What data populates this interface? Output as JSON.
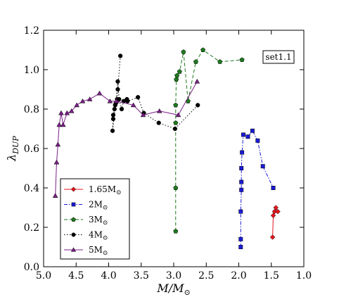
{
  "chart_data": {
    "type": "line",
    "xlabel": "M/M",
    "xlabel_sub": "⊙",
    "ylabel": "λ",
    "ylabel_sub": "DUP",
    "xlim": [
      5.0,
      1.0
    ],
    "ylim": [
      0.0,
      1.2
    ],
    "x_ticks": [
      5.0,
      4.5,
      4.0,
      3.5,
      3.0,
      2.5,
      2.0,
      1.5,
      1.0
    ],
    "x_tick_labels": [
      "5.0",
      "4.5",
      "4.0",
      "3.5",
      "3.0",
      "2.5",
      "2.0",
      "1.5",
      "1.0"
    ],
    "y_ticks": [
      0.0,
      0.2,
      0.4,
      0.6,
      0.8,
      1.0,
      1.2
    ],
    "y_tick_labels": [
      "0.0",
      "0.2",
      "0.4",
      "0.6",
      "0.8",
      "1.0",
      "1.2"
    ],
    "grid": false,
    "legend_position": "bottom-left",
    "annotation": "set1.1",
    "series": [
      {
        "name": "1.65M",
        "name_sub": "⊙",
        "color": "#e8141c",
        "marker": "diamond",
        "linestyle": "solid",
        "points": [
          [
            1.48,
            0.15
          ],
          [
            1.47,
            0.26
          ],
          [
            1.45,
            0.28
          ],
          [
            1.43,
            0.3
          ],
          [
            1.4,
            0.28
          ]
        ]
      },
      {
        "name": "2M",
        "name_sub": "⊙",
        "color": "#1a1ad8",
        "marker": "square",
        "linestyle": "dashdot",
        "points": [
          [
            1.97,
            0.1
          ],
          [
            1.97,
            0.14
          ],
          [
            1.97,
            0.28
          ],
          [
            1.96,
            0.39
          ],
          [
            1.96,
            0.43
          ],
          [
            1.96,
            0.5
          ],
          [
            1.95,
            0.58
          ],
          [
            1.93,
            0.67
          ],
          [
            1.86,
            0.66
          ],
          [
            1.79,
            0.69
          ],
          [
            1.71,
            0.64
          ],
          [
            1.63,
            0.51
          ],
          [
            1.47,
            0.4
          ]
        ]
      },
      {
        "name": "3M",
        "name_sub": "⊙",
        "color": "#1e7a1e",
        "marker": "pentagon",
        "linestyle": "dashed",
        "points": [
          [
            2.97,
            0.18
          ],
          [
            2.97,
            0.4
          ],
          [
            2.97,
            0.73
          ],
          [
            2.97,
            0.82
          ],
          [
            2.96,
            0.95
          ],
          [
            2.95,
            0.97
          ],
          [
            2.91,
            0.99
          ],
          [
            2.85,
            1.09
          ],
          [
            2.78,
            0.84
          ],
          [
            2.66,
            1.04
          ],
          [
            2.55,
            1.1
          ],
          [
            2.29,
            1.04
          ],
          [
            1.95,
            1.05
          ]
        ]
      },
      {
        "name": "4M",
        "name_sub": "⊙",
        "color": "#000000",
        "marker": "circle",
        "linestyle": "dotted",
        "points": [
          [
            3.82,
            1.07
          ],
          [
            3.86,
            0.9
          ],
          [
            3.87,
            0.85
          ],
          [
            3.9,
            0.82
          ],
          [
            3.91,
            0.8
          ],
          [
            3.93,
            0.77
          ],
          [
            3.93,
            0.75
          ],
          [
            3.94,
            0.69
          ],
          [
            3.89,
            0.83
          ],
          [
            3.86,
            0.94
          ],
          [
            3.84,
            0.85
          ],
          [
            3.8,
            0.8
          ],
          [
            3.77,
            0.84
          ],
          [
            3.72,
            0.85
          ],
          [
            3.71,
            0.84
          ],
          [
            3.55,
            0.86
          ],
          [
            3.46,
            0.78
          ],
          [
            3.23,
            0.73
          ],
          [
            2.98,
            0.7
          ],
          [
            2.63,
            0.82
          ]
        ]
      },
      {
        "name": "5M",
        "name_sub": "⊙",
        "color": "#7b1f87",
        "marker": "triangle",
        "linestyle": "solid",
        "points": [
          [
            4.82,
            0.36
          ],
          [
            4.8,
            0.53
          ],
          [
            4.78,
            0.62
          ],
          [
            4.76,
            0.72
          ],
          [
            4.73,
            0.78
          ],
          [
            4.7,
            0.72
          ],
          [
            4.64,
            0.78
          ],
          [
            4.57,
            0.79
          ],
          [
            4.49,
            0.82
          ],
          [
            4.4,
            0.84
          ],
          [
            4.29,
            0.85
          ],
          [
            4.14,
            0.88
          ],
          [
            3.98,
            0.84
          ],
          [
            3.88,
            0.84
          ],
          [
            3.62,
            0.82
          ],
          [
            3.47,
            0.77
          ],
          [
            3.22,
            0.79
          ],
          [
            2.93,
            0.77
          ],
          [
            2.64,
            0.94
          ]
        ]
      }
    ]
  }
}
